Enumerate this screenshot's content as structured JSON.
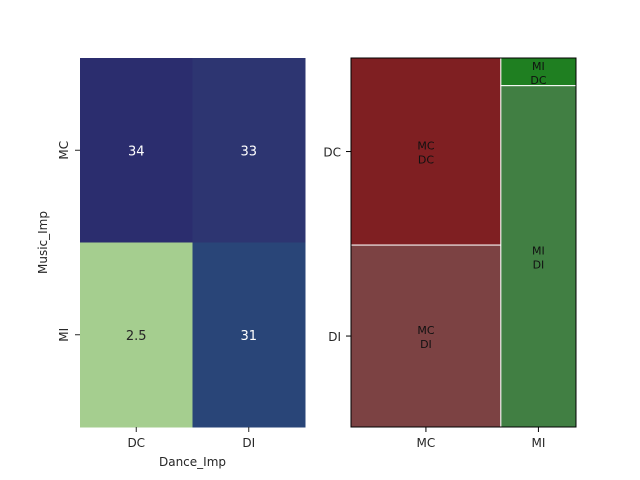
{
  "chart_data": [
    {
      "type": "heatmap",
      "xlabel": "Dance_Imp",
      "ylabel": "Music_Imp",
      "x_categories": [
        "DC",
        "DI"
      ],
      "y_categories": [
        "MC",
        "MI"
      ],
      "values": [
        [
          34,
          33
        ],
        [
          2.5,
          31
        ]
      ],
      "value_labels": [
        [
          "34",
          "33"
        ],
        [
          "2.5",
          "31"
        ]
      ],
      "colormap": "crest_r",
      "colors": [
        [
          "#2b2d6e",
          "#2d3571"
        ],
        [
          "#a5ce8f",
          "#294578"
        ]
      ]
    },
    {
      "type": "mosaic",
      "x_categories": [
        "MC",
        "MI"
      ],
      "y_categories": [
        "DC",
        "DI"
      ],
      "column_fractions": [
        0.666,
        0.334
      ],
      "tiles": [
        {
          "x": "MC",
          "y": "DC",
          "label": [
            "MC",
            "DC"
          ],
          "fraction_within_column": 0.507,
          "color": "#7f1f22"
        },
        {
          "x": "MC",
          "y": "DI",
          "label": [
            "MC",
            "DI"
          ],
          "fraction_within_column": 0.493,
          "color": "#7c4243"
        },
        {
          "x": "MI",
          "y": "DC",
          "label": [
            "MI",
            "DC"
          ],
          "fraction_within_column": 0.075,
          "color": "#1f7f21"
        },
        {
          "x": "MI",
          "y": "DI",
          "label": [
            "MI",
            "DI"
          ],
          "fraction_within_column": 0.925,
          "color": "#417f43"
        }
      ]
    }
  ]
}
